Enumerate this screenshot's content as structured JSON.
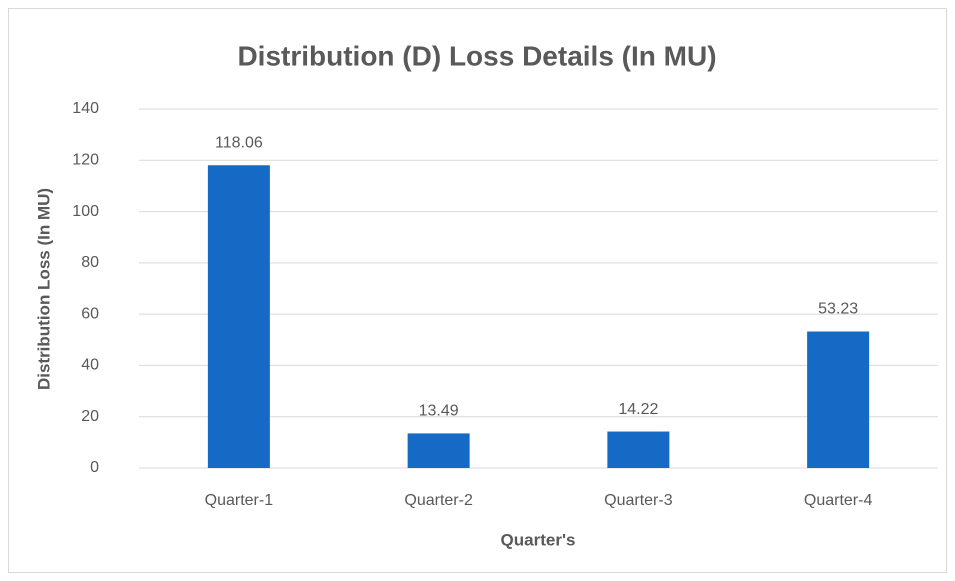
{
  "chart_data": {
    "type": "bar",
    "title": "Distribution (D) Loss Details (In MU)",
    "x_label": "Quarter's",
    "y_label": "Distribution Loss (In MU)",
    "categories": [
      "Quarter-1",
      "Quarter-2",
      "Quarter-3",
      "Quarter-4"
    ],
    "values": [
      118.06,
      13.49,
      14.22,
      53.23
    ],
    "color": "#156ac6",
    "ylim": [
      0,
      140
    ],
    "yticks": [
      0,
      20,
      40,
      60,
      80,
      100,
      120,
      140
    ],
    "grid": true
  }
}
